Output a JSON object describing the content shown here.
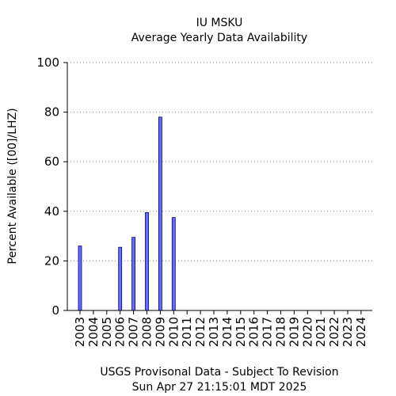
{
  "chart_data": {
    "type": "bar",
    "title": "IU MSKU",
    "subtitle": "Average Yearly Data Availability",
    "ylabel": "Percent Available ([00]/LHZ)",
    "xlabel": "",
    "footer_line1": "USGS Provisonal Data - Subject To Revision",
    "footer_line2": "Sun Apr 27 21:15:01 MDT 2025",
    "ylim": [
      0,
      100
    ],
    "yticks": [
      0,
      20,
      40,
      60,
      80,
      100
    ],
    "grid": true,
    "categories": [
      "2003",
      "2004",
      "2005",
      "2006",
      "2007",
      "2008",
      "2009",
      "2010",
      "2011",
      "2012",
      "2013",
      "2014",
      "2015",
      "2016",
      "2017",
      "2018",
      "2019",
      "2020",
      "2021",
      "2022",
      "2023",
      "2024"
    ],
    "values": [
      26,
      0,
      0,
      25.5,
      29.5,
      39.5,
      78,
      37.5,
      0,
      0,
      0,
      0,
      0,
      0,
      0,
      0,
      0,
      0,
      0,
      0,
      0,
      0
    ],
    "bar_color": "#6a6aff",
    "bar_stroke": "#000080"
  }
}
